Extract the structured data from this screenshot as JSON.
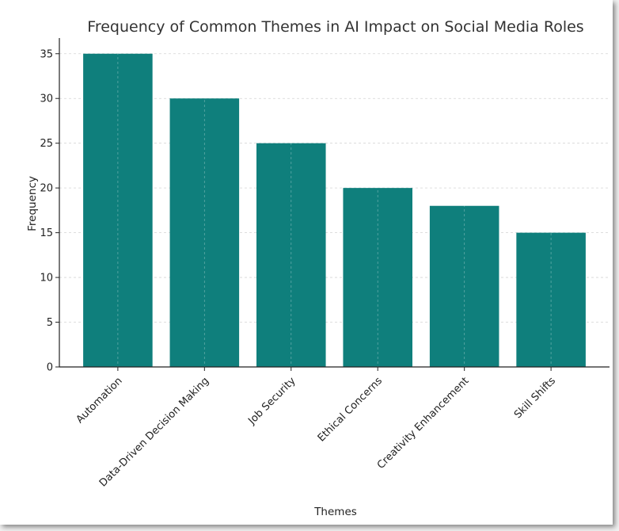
{
  "chart_data": {
    "type": "bar",
    "title": "Frequency of Common Themes in AI Impact on Social Media Roles",
    "xlabel": "Themes",
    "ylabel": "Frequency",
    "categories": [
      "Automation",
      "Data-Driven Decision Making",
      "Job Security",
      "Ethical Concerns",
      "Creativity Enhancement",
      "Skill Shifts"
    ],
    "values": [
      35,
      30,
      25,
      20,
      18,
      15
    ],
    "ylim": [
      0,
      36.75
    ],
    "yticks": [
      0,
      5,
      10,
      15,
      20,
      25,
      30,
      35
    ],
    "grid": true,
    "bar_color": "#0f7f7c"
  }
}
